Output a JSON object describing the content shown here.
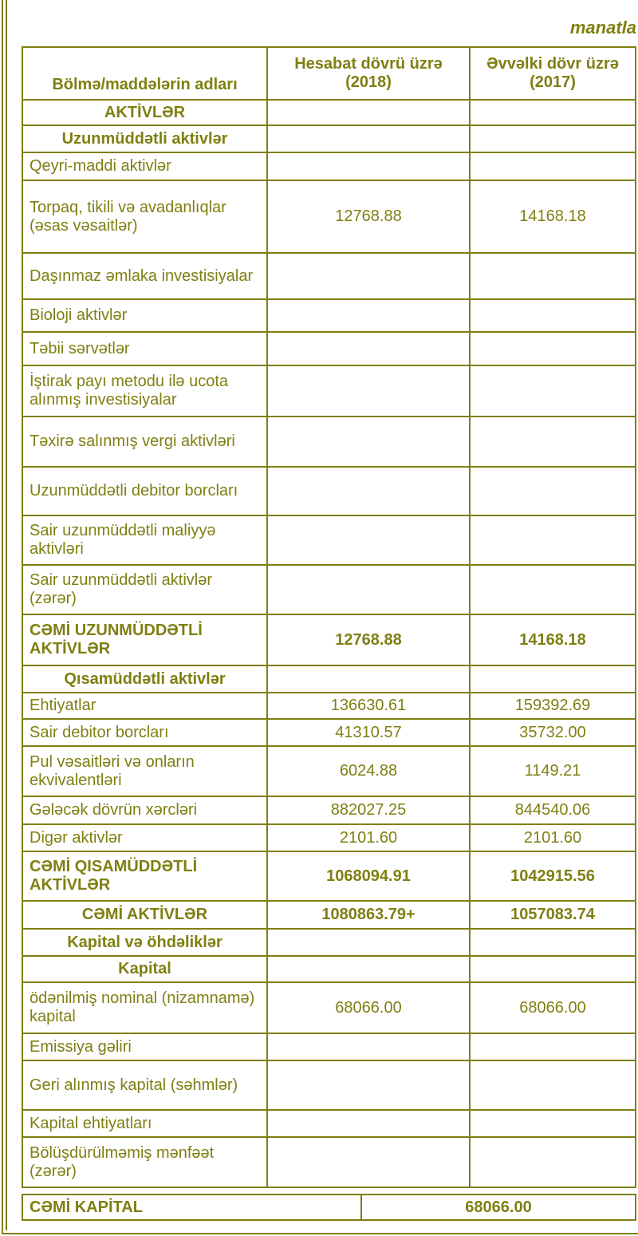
{
  "unit_label": "manatla",
  "header": {
    "col1": "Bölmə/maddələrin adları",
    "col2": "Hesabat dövrü üzrə (2018)",
    "col3": "Əvvəlki dövr üzrə (2017)"
  },
  "rows": [
    {
      "label": "AKTİVLƏR",
      "v2018": "",
      "v2017": "",
      "style": "section"
    },
    {
      "label": "Uzunmüddətli aktivlər",
      "v2018": "",
      "v2017": "",
      "style": "section"
    },
    {
      "label": "Qeyri-maddi aktivlər",
      "v2018": "",
      "v2017": "",
      "style": "item"
    },
    {
      "label": "Torpaq, tikili və avadanlıqlar (əsas vəsaitlər)",
      "v2018": "12768.88",
      "v2017": "14168.18",
      "style": "item"
    },
    {
      "label": "Daşınmaz əmlaka investisiyalar",
      "v2018": "",
      "v2017": "",
      "style": "item"
    },
    {
      "label": "Bioloji aktivlər",
      "v2018": "",
      "v2017": "",
      "style": "item"
    },
    {
      "label": "Təbii sərvətlər",
      "v2018": "",
      "v2017": "",
      "style": "item"
    },
    {
      "label": "İştirak payı metodu ilə ucota alınmış investisiyalar",
      "v2018": "",
      "v2017": "",
      "style": "item"
    },
    {
      "label": "Təxirə salınmış vergi aktivləri",
      "v2018": "",
      "v2017": "",
      "style": "item"
    },
    {
      "label": "Uzunmüddətli debitor borcları",
      "v2018": "",
      "v2017": "",
      "style": "item"
    },
    {
      "label": "Sair uzunmüddətli maliyyə aktivləri",
      "v2018": "",
      "v2017": "",
      "style": "item"
    },
    {
      "label": "Sair uzunmüddətli aktivlər (zərər)",
      "v2018": "",
      "v2017": "",
      "style": "item"
    },
    {
      "label": "CƏMİ UZUNMÜDDƏTLİ AKTİVLƏR",
      "v2018": "12768.88",
      "v2017": "14168.18",
      "style": "total"
    },
    {
      "label": "Qısamüddətli aktivlər",
      "v2018": "",
      "v2017": "",
      "style": "section"
    },
    {
      "label": "Ehtiyatlar",
      "v2018": "136630.61",
      "v2017": "159392.69",
      "style": "item"
    },
    {
      "label": "Sair debitor borcları",
      "v2018": "41310.57",
      "v2017": "35732.00",
      "style": "item"
    },
    {
      "label": "Pul vəsaitləri və onların ekvivalentləri",
      "v2018": "6024.88",
      "v2017": "1149.21",
      "style": "item"
    },
    {
      "label": "Gələcək dövrün xərcləri",
      "v2018": "882027.25",
      "v2017": "844540.06",
      "style": "item"
    },
    {
      "label": "Digər aktivlər",
      "v2018": "2101.60",
      "v2017": "2101.60",
      "style": "item"
    },
    {
      "label": "CƏMİ QISAMÜDDƏTLİ AKTİVLƏR",
      "v2018": "1068094.91",
      "v2017": "1042915.56",
      "style": "total"
    },
    {
      "label": "CƏMİ AKTİVLƏR",
      "v2018": "1080863.79+",
      "v2017": "1057083.74",
      "style": "grand"
    },
    {
      "label": "Kapital və öhdəliklər",
      "v2018": "",
      "v2017": "",
      "style": "section"
    },
    {
      "label": "Kapital",
      "v2018": "",
      "v2017": "",
      "style": "section"
    },
    {
      "label": "ödənilmiş nominal (nizamnamə) kapital",
      "v2018": "68066.00",
      "v2017": "68066.00",
      "style": "item"
    },
    {
      "label": "Emissiya gəliri",
      "v2018": "",
      "v2017": "",
      "style": "item"
    },
    {
      "label": "Geri alınmış kapital (səhmlər)",
      "v2018": "",
      "v2017": "",
      "style": "item"
    },
    {
      "label": "Kapital ehtiyatları",
      "v2018": "",
      "v2017": "",
      "style": "item"
    },
    {
      "label": "Bölüşdürülməmiş mənfəət (zərər)",
      "v2018": "",
      "v2017": "",
      "style": "item"
    }
  ],
  "total_capital": {
    "label": "CƏMİ KAPİTAL",
    "value": "68066.00"
  },
  "colors": {
    "text": "#7f7f12",
    "border": "#7f7f12",
    "background": "#ffffff"
  }
}
